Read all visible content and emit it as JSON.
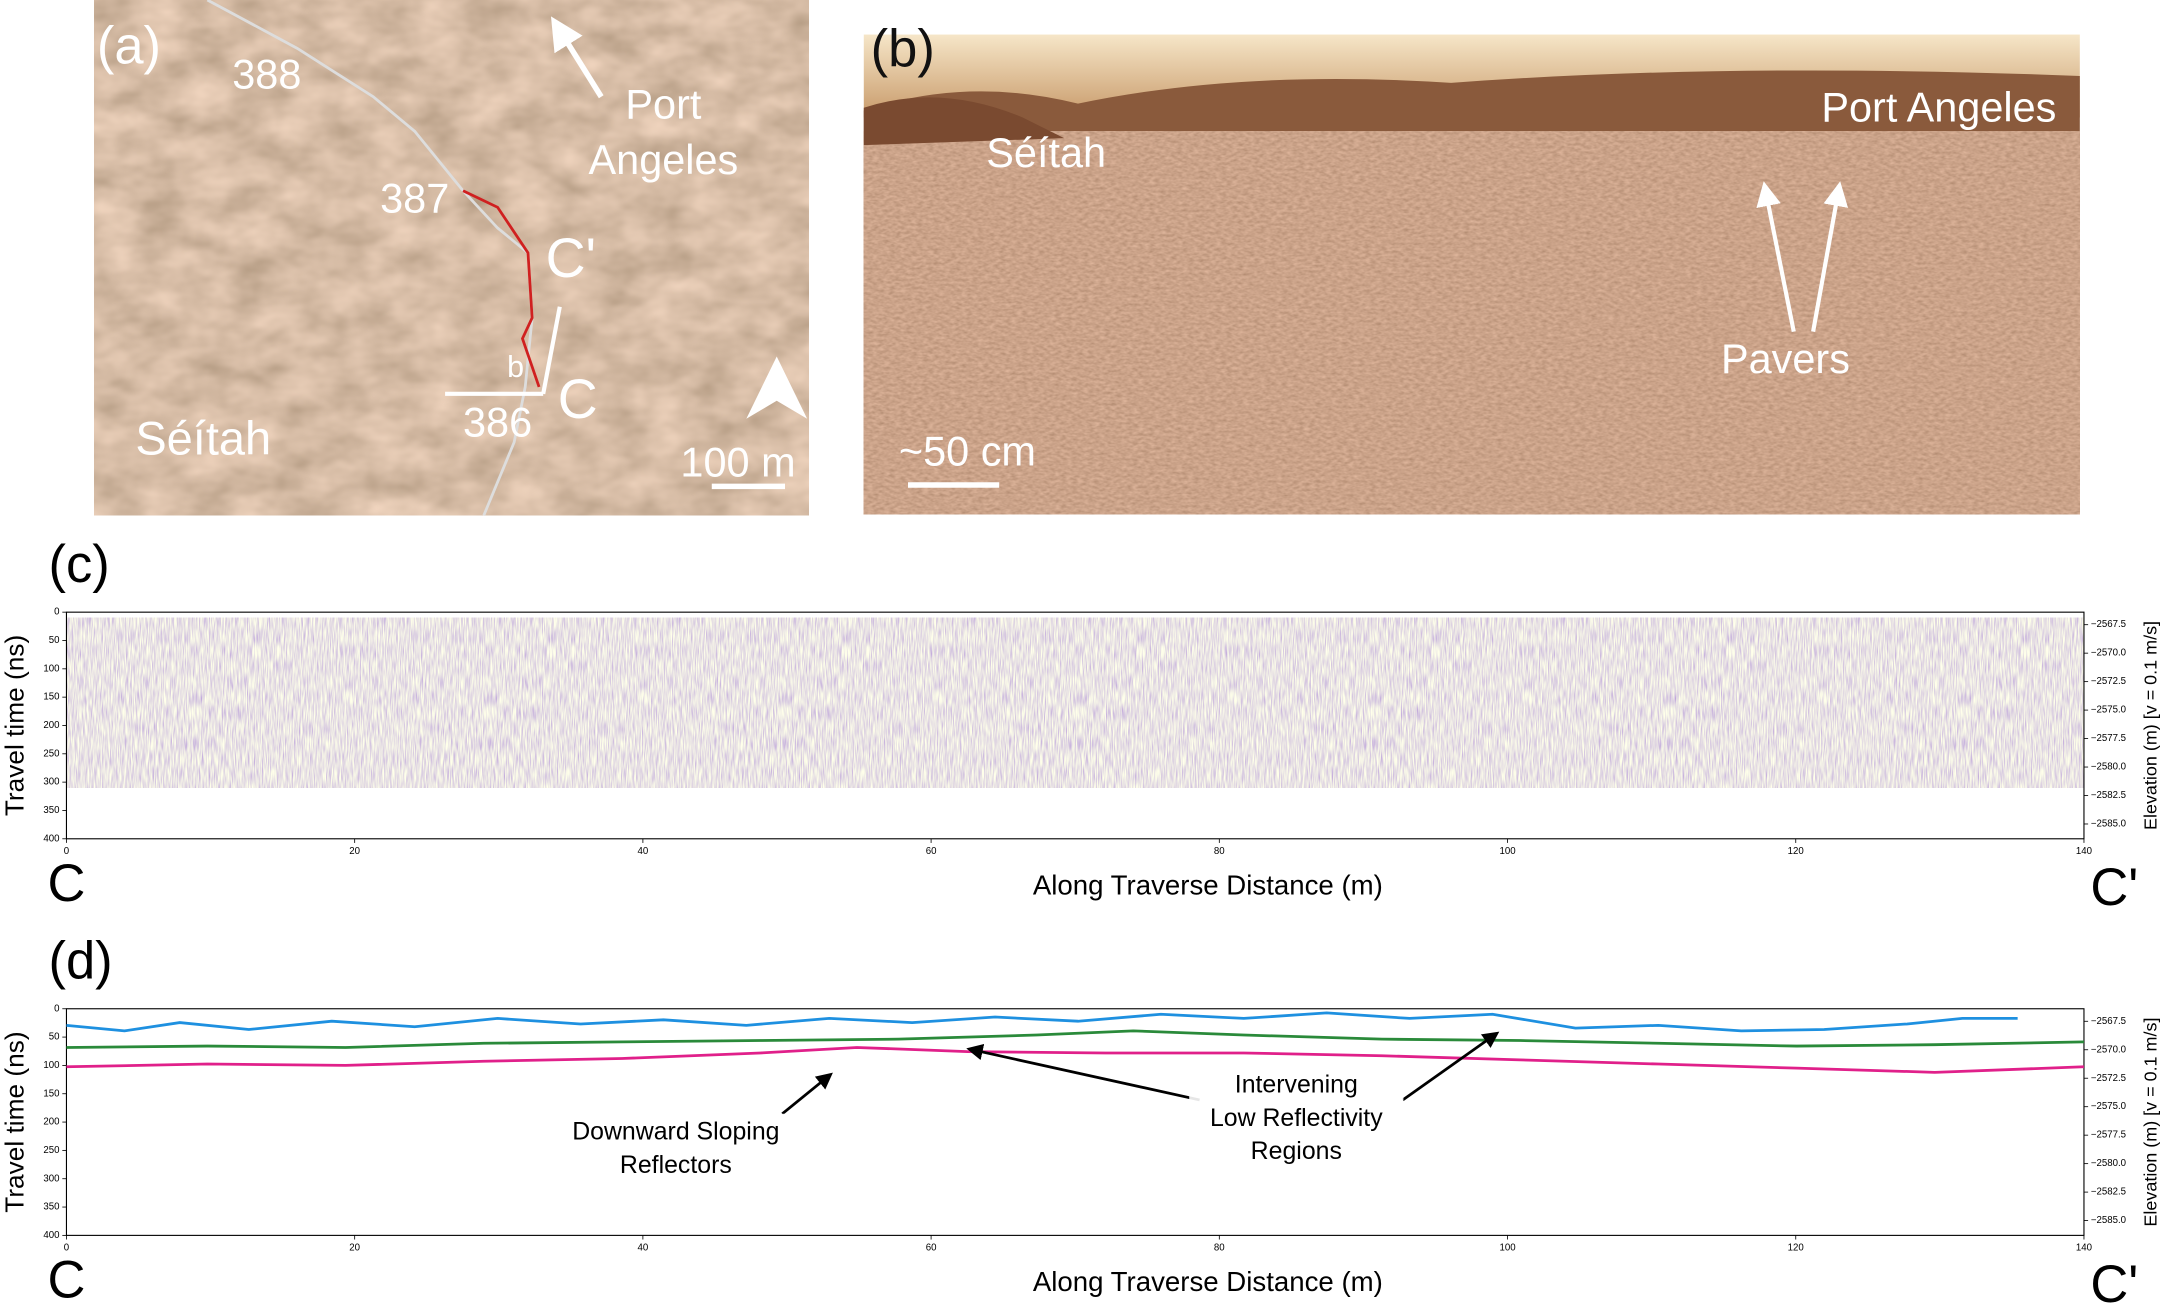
{
  "panel_a": {
    "label": "(a)",
    "sols": [
      "388",
      "387",
      "386"
    ],
    "site_lines": [
      "Port",
      "Angeles"
    ],
    "c_prime": "C'",
    "b": "b",
    "c": "C",
    "region": "Séítah",
    "scale": "100 m"
  },
  "panel_b": {
    "label": "(b)",
    "region": "Séítah",
    "site": "Port Angeles",
    "pavers": "Pavers",
    "scale": "~50 cm"
  },
  "radargrams": [
    {
      "label": "(c)",
      "ylabel": "Travel time (ns)",
      "y2label": "Elevation (m) [v = 0.1 m/s]",
      "xlabel": "Along Traverse Distance (m)",
      "start": "C",
      "end": "C'",
      "xlim": [
        0,
        140
      ],
      "xticks": [
        0,
        20,
        40,
        60,
        80,
        100,
        120,
        140
      ],
      "ylim": [
        0,
        400
      ],
      "yticks": [
        0,
        50,
        100,
        150,
        200,
        250,
        300,
        350,
        400
      ],
      "y2lim": [
        -2566.4,
        -2586.3
      ],
      "y2ticks": [
        {
          "value": -2567.5,
          "label": "−2567.5"
        },
        {
          "value": -2570,
          "label": "−2570.0"
        },
        {
          "value": -2572.5,
          "label": "−2572.5"
        },
        {
          "value": -2575,
          "label": "−2575.0"
        },
        {
          "value": -2577.5,
          "label": "−2577.5"
        },
        {
          "value": -2580,
          "label": "−2580.0"
        },
        {
          "value": -2582.5,
          "label": "−2582.5"
        },
        {
          "value": -2585,
          "label": "−2585.0"
        }
      ]
    },
    {
      "label": "(d)",
      "ylabel": "Travel time (ns)",
      "y2label": "Elevation (m) [v = 0.1 m/s]",
      "xlabel": "Along Traverse Distance (m)",
      "start": "C",
      "end": "C'",
      "xlim": [
        0,
        140
      ],
      "xticks": [
        0,
        20,
        40,
        60,
        80,
        100,
        120,
        140
      ],
      "ylim": [
        0,
        400
      ],
      "yticks": [
        0,
        50,
        100,
        150,
        200,
        250,
        300,
        350,
        400
      ],
      "y2lim": [
        -2566.4,
        -2586.3
      ],
      "y2ticks": [
        {
          "value": -2567.5,
          "label": "−2567.5"
        },
        {
          "value": -2570,
          "label": "−2570.0"
        },
        {
          "value": -2572.5,
          "label": "−2572.5"
        },
        {
          "value": -2575,
          "label": "−2575.0"
        },
        {
          "value": -2577.5,
          "label": "−2577.5"
        },
        {
          "value": -2580,
          "label": "−2580.0"
        },
        {
          "value": -2582.5,
          "label": "−2582.5"
        },
        {
          "value": -2585,
          "label": "−2585.0"
        }
      ],
      "annotations": [
        [
          "Downward Sloping",
          "Reflectors"
        ],
        [
          "Intervening",
          "Low Reflectivity",
          "Regions"
        ]
      ]
    }
  ]
}
